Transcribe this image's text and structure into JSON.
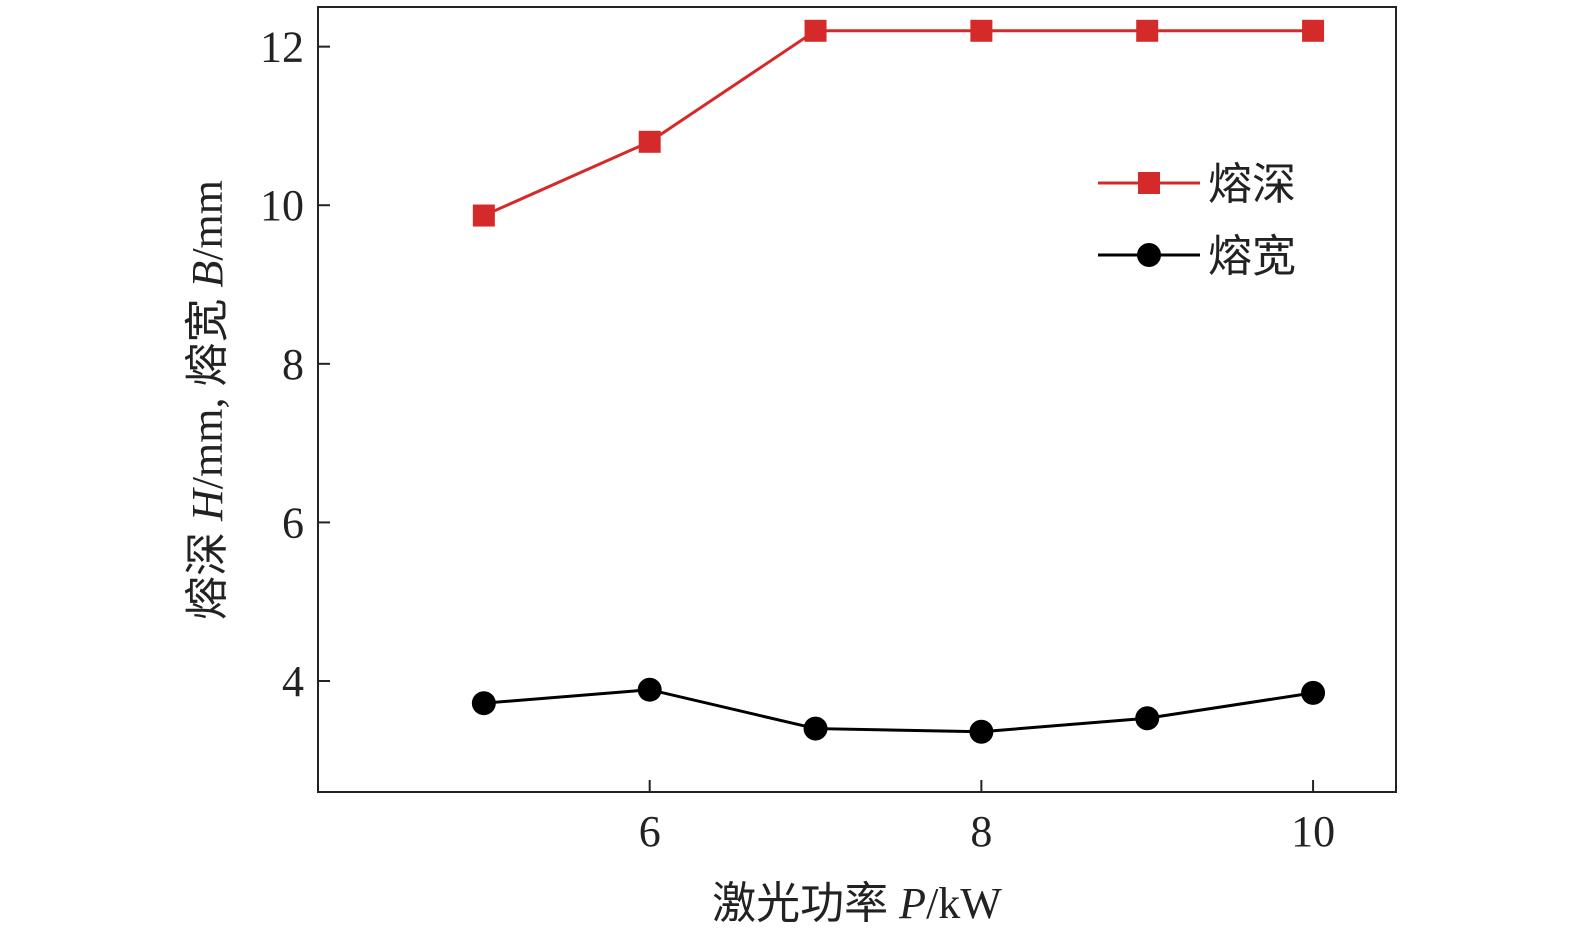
{
  "chart_data": {
    "type": "line",
    "title": "",
    "xlabel_main": "激光功率 ",
    "xlabel_symbol": "P",
    "xlabel_unit": "/kW",
    "ylabel_part1": "熔深 ",
    "ylabel_symbol1": "H",
    "ylabel_part2": "/mm, 熔宽 ",
    "ylabel_symbol2": "B",
    "ylabel_part3": "/mm",
    "xlim": [
      4.0,
      10.5
    ],
    "ylim": [
      2.6,
      12.5
    ],
    "xticks": [
      6,
      8,
      10
    ],
    "yticks": [
      4,
      6,
      8,
      10,
      12
    ],
    "grid": false,
    "legend_position": "top-right",
    "series": [
      {
        "name": "熔深",
        "marker": "square",
        "color": "#d42a2a",
        "x": [
          5,
          6,
          7,
          8,
          9,
          10
        ],
        "y": [
          9.87,
          10.8,
          12.2,
          12.2,
          12.2,
          12.2
        ]
      },
      {
        "name": "熔宽",
        "marker": "circle",
        "color": "#000000",
        "x": [
          5,
          6,
          7,
          8,
          9,
          10
        ],
        "y": [
          3.72,
          3.89,
          3.4,
          3.36,
          3.53,
          3.85
        ]
      }
    ]
  }
}
